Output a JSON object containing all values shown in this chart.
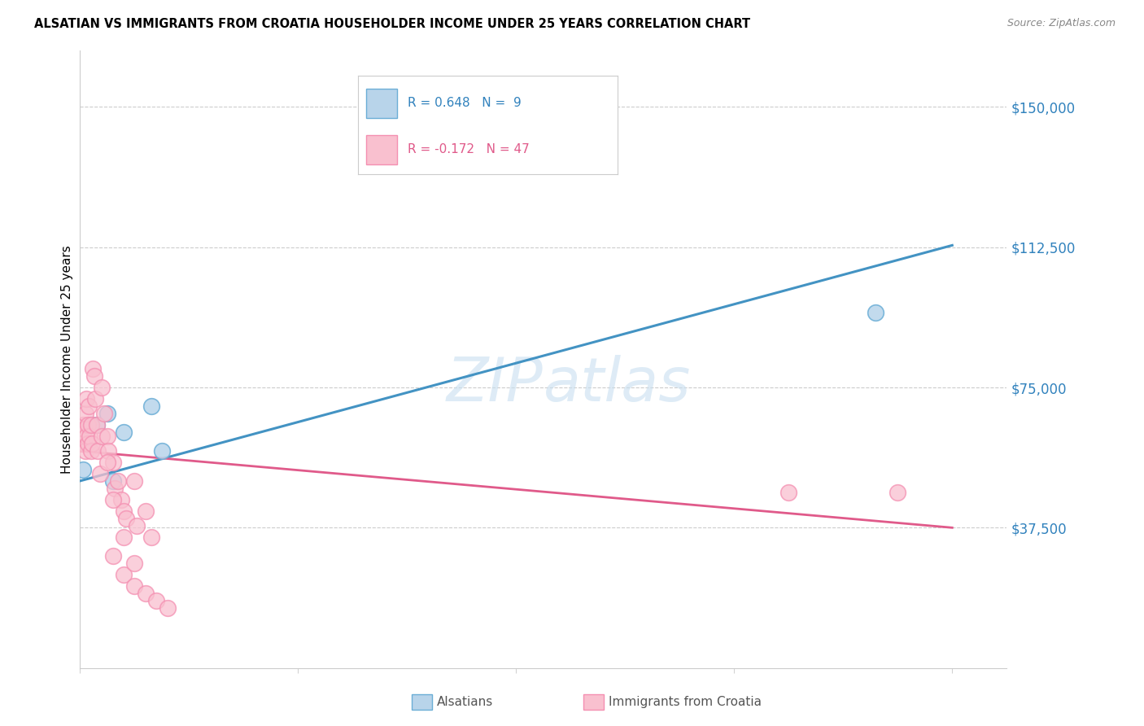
{
  "title": "ALSATIAN VS IMMIGRANTS FROM CROATIA HOUSEHOLDER INCOME UNDER 25 YEARS CORRELATION CHART",
  "source": "Source: ZipAtlas.com",
  "ylabel": "Householder Income Under 25 years",
  "ytick_labels": [
    "$37,500",
    "$75,000",
    "$112,500",
    "$150,000"
  ],
  "ytick_values": [
    37500,
    75000,
    112500,
    150000
  ],
  "ylim": [
    0,
    165000
  ],
  "xlim": [
    0.0,
    0.085
  ],
  "blue_color_fill": "#b8d4ea",
  "blue_color_edge": "#6baed6",
  "blue_line_color": "#4393c3",
  "pink_color_fill": "#f9c0cf",
  "pink_color_edge": "#f48fb1",
  "pink_line_color": "#e05a8a",
  "blue_scatter_x": [
    0.0003,
    0.001,
    0.0015,
    0.0025,
    0.003,
    0.004,
    0.0065,
    0.0075,
    0.073
  ],
  "blue_scatter_y": [
    53000,
    65000,
    65000,
    68000,
    50000,
    63000,
    70000,
    58000,
    95000
  ],
  "pink_scatter_x": [
    0.0002,
    0.0003,
    0.0004,
    0.0005,
    0.0005,
    0.0006,
    0.0006,
    0.0007,
    0.0007,
    0.0008,
    0.0009,
    0.001,
    0.001,
    0.0011,
    0.0012,
    0.0013,
    0.0014,
    0.0015,
    0.0016,
    0.0018,
    0.002,
    0.002,
    0.0022,
    0.0025,
    0.0026,
    0.003,
    0.0032,
    0.0035,
    0.0038,
    0.004,
    0.0042,
    0.005,
    0.0052,
    0.006,
    0.0065,
    0.003,
    0.004,
    0.005,
    0.006,
    0.007,
    0.008,
    0.0025,
    0.003,
    0.004,
    0.005,
    0.065,
    0.075
  ],
  "pink_scatter_y": [
    60000,
    65000,
    64000,
    68000,
    58000,
    72000,
    62000,
    65000,
    60000,
    70000,
    62000,
    65000,
    58000,
    60000,
    80000,
    78000,
    72000,
    65000,
    58000,
    52000,
    75000,
    62000,
    68000,
    62000,
    58000,
    55000,
    48000,
    50000,
    45000,
    42000,
    40000,
    50000,
    38000,
    42000,
    35000,
    30000,
    25000,
    22000,
    20000,
    18000,
    16000,
    55000,
    45000,
    35000,
    28000,
    47000,
    47000
  ],
  "blue_line_x0": 0.0,
  "blue_line_x1": 0.08,
  "blue_line_y0": 50000,
  "blue_line_y1": 113000,
  "pink_line_x0": 0.0,
  "pink_line_x1": 0.08,
  "pink_line_y0": 58000,
  "pink_line_y1": 37500,
  "legend_r1": "0.648",
  "legend_n1": " 9",
  "legend_r2": "-0.172",
  "legend_n2": "47",
  "watermark_color": "#c8dff0"
}
